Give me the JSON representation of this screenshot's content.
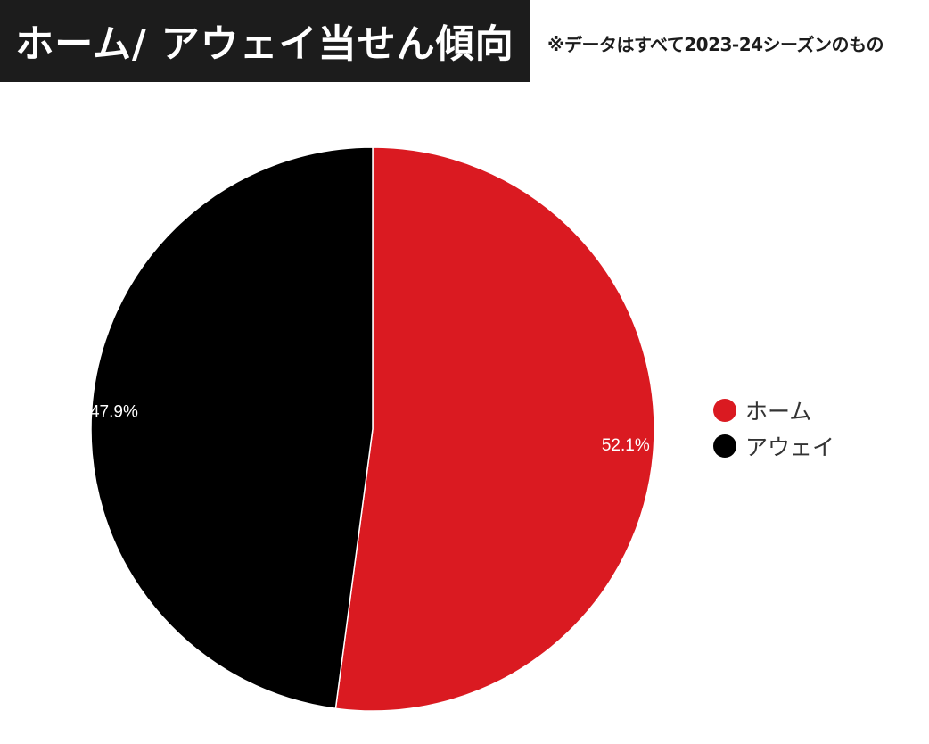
{
  "header": {
    "title": "ホーム/ アウェイ当せん傾向",
    "note": "※データはすべて2023-24シーズンのもの"
  },
  "chart_data": {
    "type": "pie",
    "title": "ホーム/ アウェイ当せん傾向",
    "series": [
      {
        "name": "ホーム",
        "value": 52.1,
        "label": "52.1%",
        "color": "#da1a21"
      },
      {
        "name": "アウェイ",
        "value": 47.9,
        "label": "47.9%",
        "color": "#000000"
      }
    ],
    "legend_position": "right",
    "start_angle": "top",
    "direction": "clockwise"
  }
}
